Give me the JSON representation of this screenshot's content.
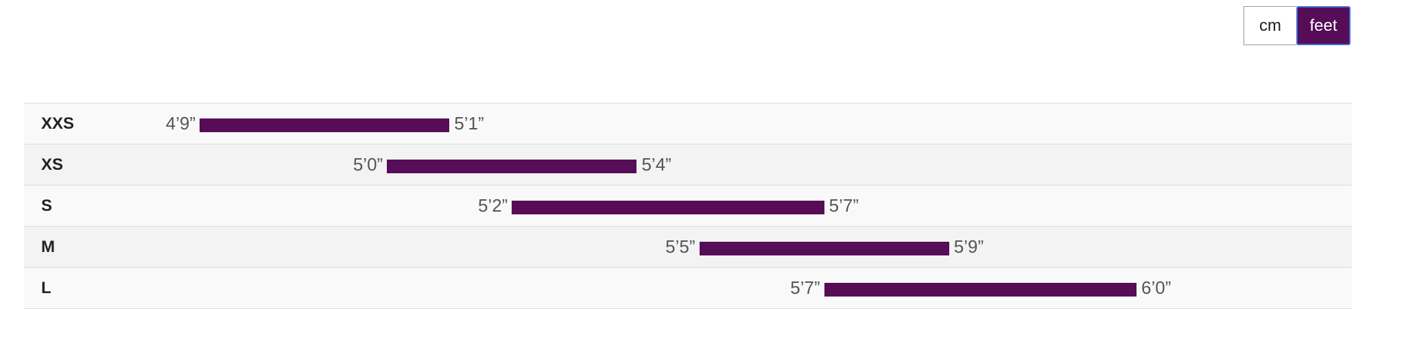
{
  "unit_toggle": {
    "options": [
      {
        "label": "cm",
        "selected": false
      },
      {
        "label": "feet",
        "selected": true
      }
    ],
    "accent_color": "#560c57",
    "focus_color": "#3d6fd6"
  },
  "chart_data": {
    "type": "bar",
    "subtype": "range",
    "orientation": "horizontal",
    "unit": "feet",
    "categories": [
      "XXS",
      "XS",
      "S",
      "M",
      "L"
    ],
    "ranges": [
      {
        "size": "XXS",
        "min": 57,
        "max": 61,
        "min_label": "4’9”",
        "max_label": "5’1”"
      },
      {
        "size": "XS",
        "min": 60,
        "max": 64,
        "min_label": "5’0”",
        "max_label": "5’4”"
      },
      {
        "size": "S",
        "min": 62,
        "max": 67,
        "min_label": "5’2”",
        "max_label": "5’7”"
      },
      {
        "size": "M",
        "min": 65,
        "max": 69,
        "min_label": "5’5”",
        "max_label": "5’9”"
      },
      {
        "size": "L",
        "min": 67,
        "max": 72,
        "min_label": "5’7”",
        "max_label": "6’0”"
      }
    ],
    "bar_color": "#560c57",
    "grid": false
  }
}
